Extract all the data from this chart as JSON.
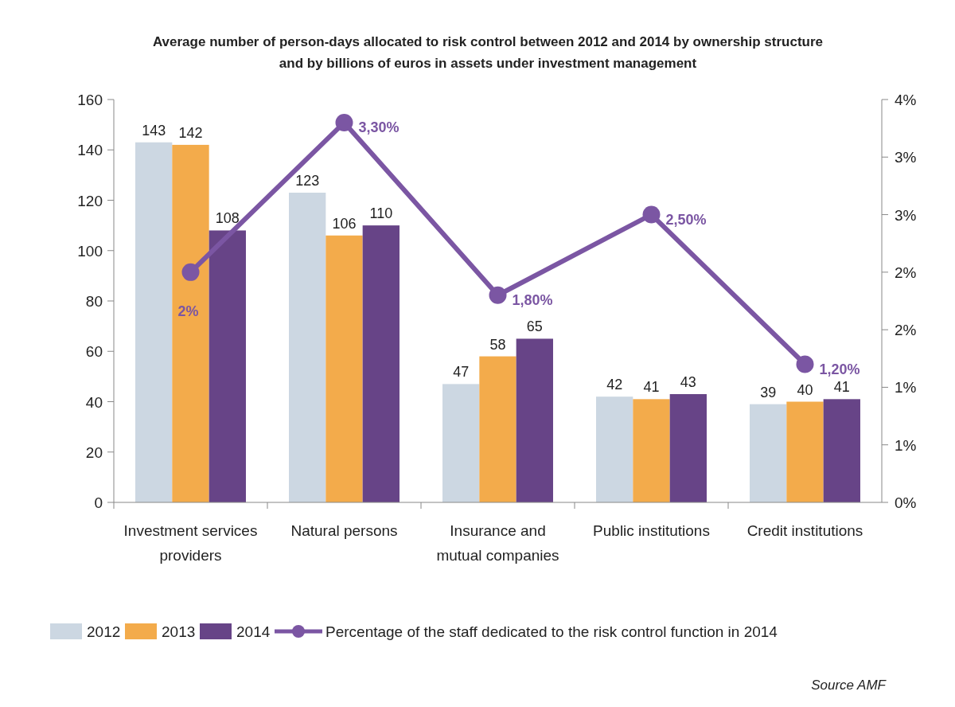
{
  "chart_data": {
    "type": "bar",
    "title": "Average number of person-days allocated to risk control between 2012 and 2014 by ownership structure and by billions of euros in assets under investment management",
    "categories": [
      "Investment services providers",
      "Natural persons",
      "Insurance and mutual companies",
      "Public institutions",
      "Credit institutions"
    ],
    "series": [
      {
        "name": "2012",
        "color": "#ccd7e2",
        "values": [
          143,
          123,
          47,
          42,
          39
        ]
      },
      {
        "name": "2013",
        "color": "#f3ab4b",
        "values": [
          142,
          106,
          58,
          41,
          40
        ]
      },
      {
        "name": "2014",
        "color": "#674487",
        "values": [
          108,
          110,
          65,
          43,
          41
        ]
      },
      {
        "name": "Percentage of the staff dedicated to the risk control function in 2014",
        "type": "line",
        "axis": "y2",
        "color": "#7b56a3",
        "marker": "circle",
        "values": [
          2,
          3.3,
          1.8,
          2.5,
          1.2
        ],
        "value_labels": [
          "2%",
          "3,30%",
          "1,80%",
          "2,50%",
          "1,20%"
        ]
      }
    ],
    "data_labels": true,
    "ylim": [
      0,
      160
    ],
    "yticks": [
      0,
      20,
      40,
      60,
      80,
      100,
      120,
      140,
      160
    ],
    "y2lim": [
      0,
      3.5
    ],
    "y2ticks": [
      {
        "value": 0,
        "label": "0%"
      },
      {
        "value": 0.5,
        "label": "1%"
      },
      {
        "value": 1,
        "label": "1%"
      },
      {
        "value": 1.5,
        "label": "2%"
      },
      {
        "value": 2,
        "label": "2%"
      },
      {
        "value": 2.5,
        "label": "3%"
      },
      {
        "value": 3,
        "label": "3%"
      },
      {
        "value": 3.5,
        "label": "4%"
      }
    ],
    "legend": "bottom",
    "grid": false,
    "annotations": [
      "Source AMF"
    ]
  }
}
